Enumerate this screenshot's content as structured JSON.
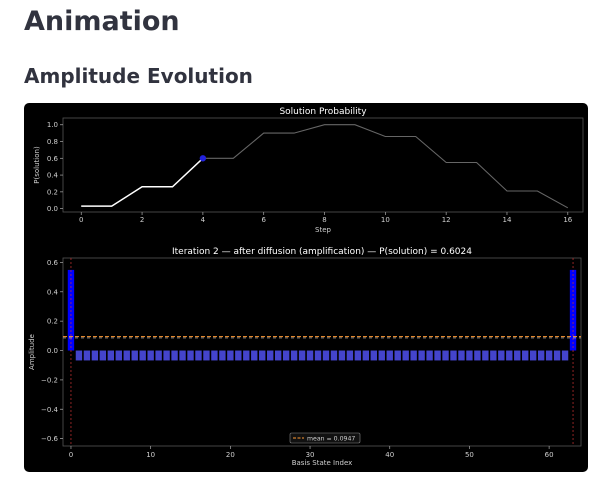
{
  "page": {
    "title": "Animation",
    "section_title": "Amplitude Evolution"
  },
  "colors": {
    "background": "#000000",
    "axes_edge": "#555555",
    "history_line": "#ffffff",
    "future_line": "#666666",
    "current_marker": "#2222dd",
    "bar_normal": "#4444cc",
    "bar_solution": "#0000ff",
    "mean_line": "#ff9933",
    "solution_marker_line": "#cc3333"
  },
  "chart_data": [
    {
      "type": "line",
      "title": "Solution Probability",
      "xlabel": "Step",
      "ylabel": "P(solution)",
      "xlim": [
        -0.6,
        16.5
      ],
      "ylim": [
        -0.04,
        1.08
      ],
      "x_ticks": [
        "0",
        "2",
        "4",
        "6",
        "8",
        "10",
        "12",
        "14",
        "16"
      ],
      "y_ticks": [
        "0.0",
        "0.2",
        "0.4",
        "0.6",
        "0.8",
        "1.0"
      ],
      "x": [
        0,
        1,
        2,
        3,
        4,
        5,
        6,
        7,
        8,
        9,
        10,
        11,
        12,
        13,
        14,
        15,
        16
      ],
      "values": [
        0.03,
        0.03,
        0.26,
        0.26,
        0.6,
        0.6,
        0.9,
        0.9,
        1.0,
        1.0,
        0.86,
        0.86,
        0.55,
        0.55,
        0.21,
        0.21,
        0.01
      ],
      "current_step": 4,
      "grid": false
    },
    {
      "type": "bar",
      "title": "Iteration 2 — after diffusion (amplification)  —  P(solution) = 0.6024",
      "xlabel": "Basis State Index",
      "ylabel": "Amplitude",
      "xlim": [
        -1,
        64
      ],
      "ylim": [
        -0.65,
        0.63
      ],
      "x_ticks": [
        "0",
        "10",
        "20",
        "30",
        "40",
        "50",
        "60"
      ],
      "y_ticks": [
        "−0.6",
        "−0.4",
        "−0.2",
        "0.0",
        "0.2",
        "0.4",
        "0.6"
      ],
      "num_states": 64,
      "solution_indices": [
        0,
        63
      ],
      "solution_amplitude": 0.549,
      "other_amplitude": -0.0675,
      "mean_amplitude": 0.0947,
      "legend": [
        {
          "label": "mean = 0.0947"
        }
      ],
      "legend_placement": "bottom-center",
      "grid": false
    }
  ]
}
